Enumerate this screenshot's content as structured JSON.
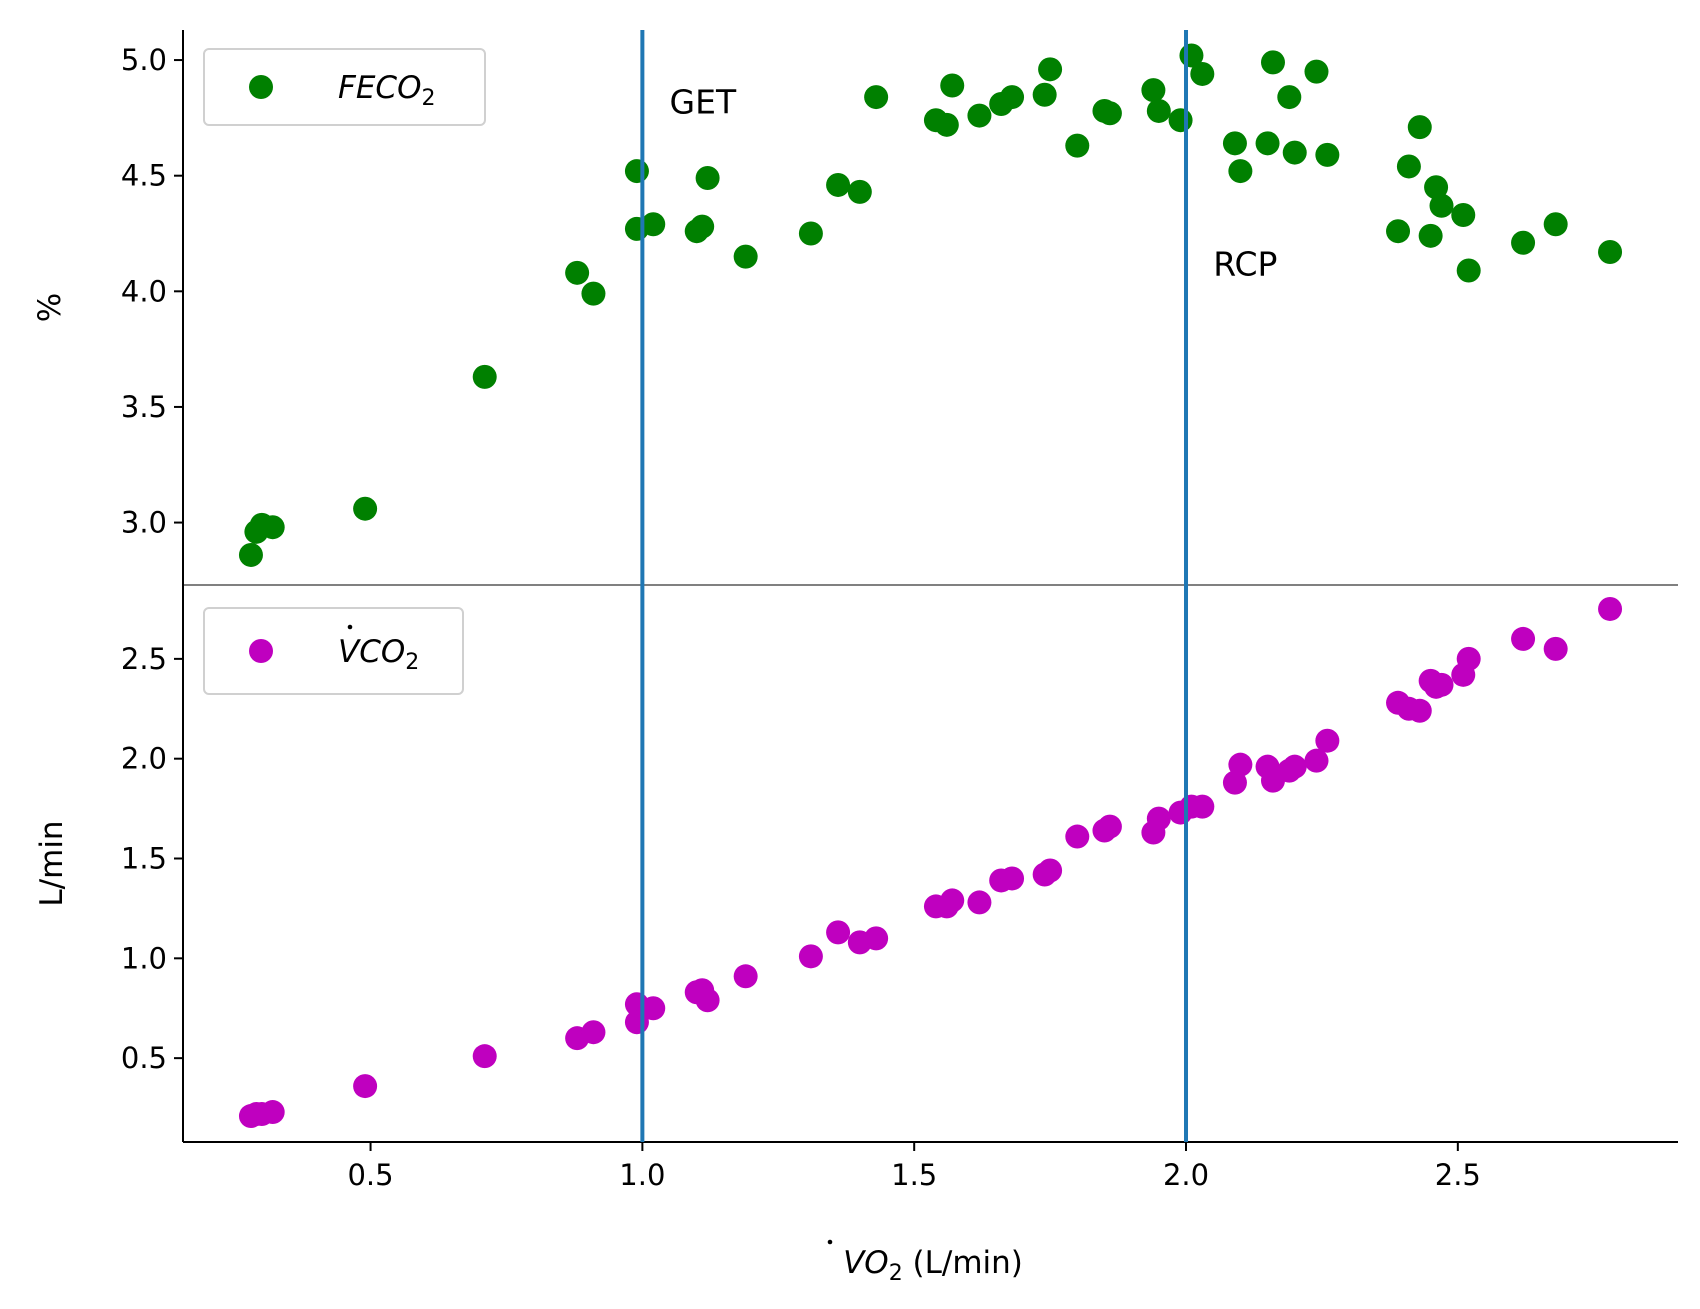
{
  "chart_data": [
    {
      "type": "scatter",
      "panel": "top",
      "ylabel": "%",
      "ylim": [
        2.73,
        5.13
      ],
      "yticks": [
        "3.0",
        "3.5",
        "4.0",
        "4.5",
        "5.0"
      ],
      "ytick_values": [
        3.0,
        3.5,
        4.0,
        4.5,
        5.0
      ],
      "legend_position": "upper-left",
      "series": [
        {
          "name_parts": [
            "FECO",
            "2"
          ],
          "color": "#008000",
          "points": [
            [
              0.28,
              2.86
            ],
            [
              0.29,
              2.96
            ],
            [
              0.3,
              2.99
            ],
            [
              0.32,
              2.98
            ],
            [
              0.49,
              3.06
            ],
            [
              0.71,
              3.63
            ],
            [
              0.88,
              4.08
            ],
            [
              0.91,
              3.99
            ],
            [
              0.99,
              4.27
            ],
            [
              0.99,
              4.52
            ],
            [
              1.02,
              4.29
            ],
            [
              1.1,
              4.26
            ],
            [
              1.11,
              4.28
            ],
            [
              1.12,
              4.49
            ],
            [
              1.19,
              4.15
            ],
            [
              1.31,
              4.25
            ],
            [
              1.36,
              4.46
            ],
            [
              1.4,
              4.43
            ],
            [
              1.43,
              4.84
            ],
            [
              1.54,
              4.74
            ],
            [
              1.56,
              4.72
            ],
            [
              1.57,
              4.89
            ],
            [
              1.62,
              4.76
            ],
            [
              1.66,
              4.81
            ],
            [
              1.68,
              4.84
            ],
            [
              1.74,
              4.85
            ],
            [
              1.75,
              4.96
            ],
            [
              1.8,
              4.63
            ],
            [
              1.85,
              4.78
            ],
            [
              1.86,
              4.77
            ],
            [
              1.94,
              4.87
            ],
            [
              1.95,
              4.78
            ],
            [
              1.99,
              4.74
            ],
            [
              2.01,
              5.02
            ],
            [
              2.03,
              4.94
            ],
            [
              2.09,
              4.64
            ],
            [
              2.1,
              4.52
            ],
            [
              2.15,
              4.64
            ],
            [
              2.16,
              4.99
            ],
            [
              2.19,
              4.84
            ],
            [
              2.2,
              4.6
            ],
            [
              2.24,
              4.95
            ],
            [
              2.26,
              4.59
            ],
            [
              2.39,
              4.26
            ],
            [
              2.41,
              4.54
            ],
            [
              2.43,
              4.71
            ],
            [
              2.45,
              4.24
            ],
            [
              2.46,
              4.45
            ],
            [
              2.47,
              4.37
            ],
            [
              2.51,
              4.33
            ],
            [
              2.52,
              4.09
            ],
            [
              2.62,
              4.21
            ],
            [
              2.68,
              4.29
            ],
            [
              2.78,
              4.17
            ]
          ]
        }
      ],
      "annotations": [
        {
          "text": "GET",
          "x": 1.05,
          "y": 4.82
        },
        {
          "text": "RCP",
          "x": 2.05,
          "y": 4.12
        }
      ]
    },
    {
      "type": "scatter",
      "panel": "bottom",
      "xlabel_parts": [
        "V",
        "O",
        "2",
        " (L/min)"
      ],
      "ylabel": "L/min",
      "xlim": [
        0.155,
        2.905
      ],
      "ylim": [
        0.08,
        2.87
      ],
      "xticks": [
        "0.5",
        "1.0",
        "1.5",
        "2.0",
        "2.5"
      ],
      "xtick_values": [
        0.5,
        1.0,
        1.5,
        2.0,
        2.5
      ],
      "yticks": [
        "0.5",
        "1.0",
        "1.5",
        "2.0",
        "2.5"
      ],
      "ytick_values": [
        0.5,
        1.0,
        1.5,
        2.0,
        2.5
      ],
      "legend_position": "upper-left",
      "series": [
        {
          "name_parts": [
            "V",
            "CO",
            "2"
          ],
          "color": "#bf00bf",
          "points": [
            [
              0.28,
              0.21
            ],
            [
              0.29,
              0.22
            ],
            [
              0.3,
              0.22
            ],
            [
              0.32,
              0.23
            ],
            [
              0.49,
              0.36
            ],
            [
              0.71,
              0.51
            ],
            [
              0.88,
              0.6
            ],
            [
              0.91,
              0.63
            ],
            [
              0.99,
              0.77
            ],
            [
              0.99,
              0.68
            ],
            [
              1.02,
              0.75
            ],
            [
              1.1,
              0.83
            ],
            [
              1.11,
              0.84
            ],
            [
              1.12,
              0.79
            ],
            [
              1.19,
              0.91
            ],
            [
              1.31,
              1.01
            ],
            [
              1.36,
              1.13
            ],
            [
              1.4,
              1.08
            ],
            [
              1.43,
              1.1
            ],
            [
              1.54,
              1.26
            ],
            [
              1.56,
              1.26
            ],
            [
              1.57,
              1.29
            ],
            [
              1.62,
              1.28
            ],
            [
              1.66,
              1.39
            ],
            [
              1.68,
              1.4
            ],
            [
              1.74,
              1.42
            ],
            [
              1.75,
              1.44
            ],
            [
              1.8,
              1.61
            ],
            [
              1.85,
              1.64
            ],
            [
              1.86,
              1.66
            ],
            [
              1.94,
              1.63
            ],
            [
              1.95,
              1.7
            ],
            [
              1.99,
              1.73
            ],
            [
              2.01,
              1.76
            ],
            [
              2.03,
              1.76
            ],
            [
              2.09,
              1.88
            ],
            [
              2.1,
              1.97
            ],
            [
              2.15,
              1.96
            ],
            [
              2.16,
              1.89
            ],
            [
              2.19,
              1.94
            ],
            [
              2.2,
              1.96
            ],
            [
              2.24,
              1.99
            ],
            [
              2.26,
              2.09
            ],
            [
              2.39,
              2.28
            ],
            [
              2.41,
              2.25
            ],
            [
              2.43,
              2.24
            ],
            [
              2.45,
              2.39
            ],
            [
              2.46,
              2.36
            ],
            [
              2.47,
              2.37
            ],
            [
              2.51,
              2.42
            ],
            [
              2.52,
              2.5
            ],
            [
              2.62,
              2.6
            ],
            [
              2.68,
              2.55
            ],
            [
              2.78,
              2.75
            ]
          ]
        }
      ]
    }
  ],
  "threshold_lines": {
    "color": "#1f77b4",
    "x_values": [
      1.0,
      2.0
    ]
  }
}
